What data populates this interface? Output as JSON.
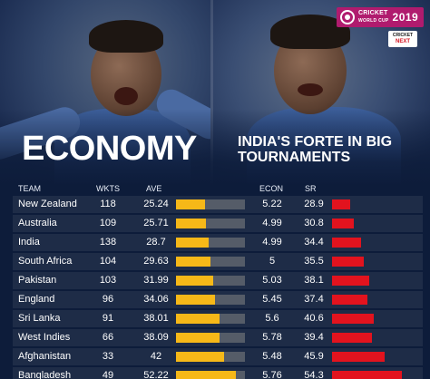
{
  "logos": {
    "world_cup_line1": "CRICKET",
    "world_cup_line2": "WORLD CUP",
    "world_cup_year": "2019",
    "cricket_next_line1": "CRICKET",
    "cricket_next_line2": "NEXT"
  },
  "headline": {
    "title": "ECONOMY",
    "subtitle": "INDIA'S FORTE IN BIG TOURNAMENTS"
  },
  "colors": {
    "background": "#0d1c3a",
    "ave_bar": "#f6b818",
    "sr_bar": "#e2131e",
    "row_band": "#2a374f"
  },
  "table": {
    "headers": {
      "team": "TEAM",
      "wkts": "WKTS",
      "ave": "AVE",
      "econ": "ECON",
      "sr": "SR"
    },
    "rows": [
      {
        "team": "New Zealand",
        "wkts": "118",
        "ave": "25.24",
        "econ": "5.22",
        "sr": "28.9"
      },
      {
        "team": "Australia",
        "wkts": "109",
        "ave": "25.71",
        "econ": "4.99",
        "sr": "30.8"
      },
      {
        "team": "India",
        "wkts": "138",
        "ave": "28.7",
        "econ": "4.99",
        "sr": "34.4"
      },
      {
        "team": "South Africa",
        "wkts": "104",
        "ave": "29.63",
        "econ": "5",
        "sr": "35.5"
      },
      {
        "team": "Pakistan",
        "wkts": "103",
        "ave": "31.99",
        "econ": "5.03",
        "sr": "38.1"
      },
      {
        "team": "England",
        "wkts": "96",
        "ave": "34.06",
        "econ": "5.45",
        "sr": "37.4"
      },
      {
        "team": "Sri Lanka",
        "wkts": "91",
        "ave": "38.01",
        "econ": "5.6",
        "sr": "40.6"
      },
      {
        "team": "West Indies",
        "wkts": "66",
        "ave": "38.09",
        "econ": "5.78",
        "sr": "39.4"
      },
      {
        "team": "Afghanistan",
        "wkts": "33",
        "ave": "42",
        "econ": "5.48",
        "sr": "45.9"
      },
      {
        "team": "Bangladesh",
        "wkts": "49",
        "ave": "52.22",
        "econ": "5.76",
        "sr": "54.3"
      }
    ]
  }
}
